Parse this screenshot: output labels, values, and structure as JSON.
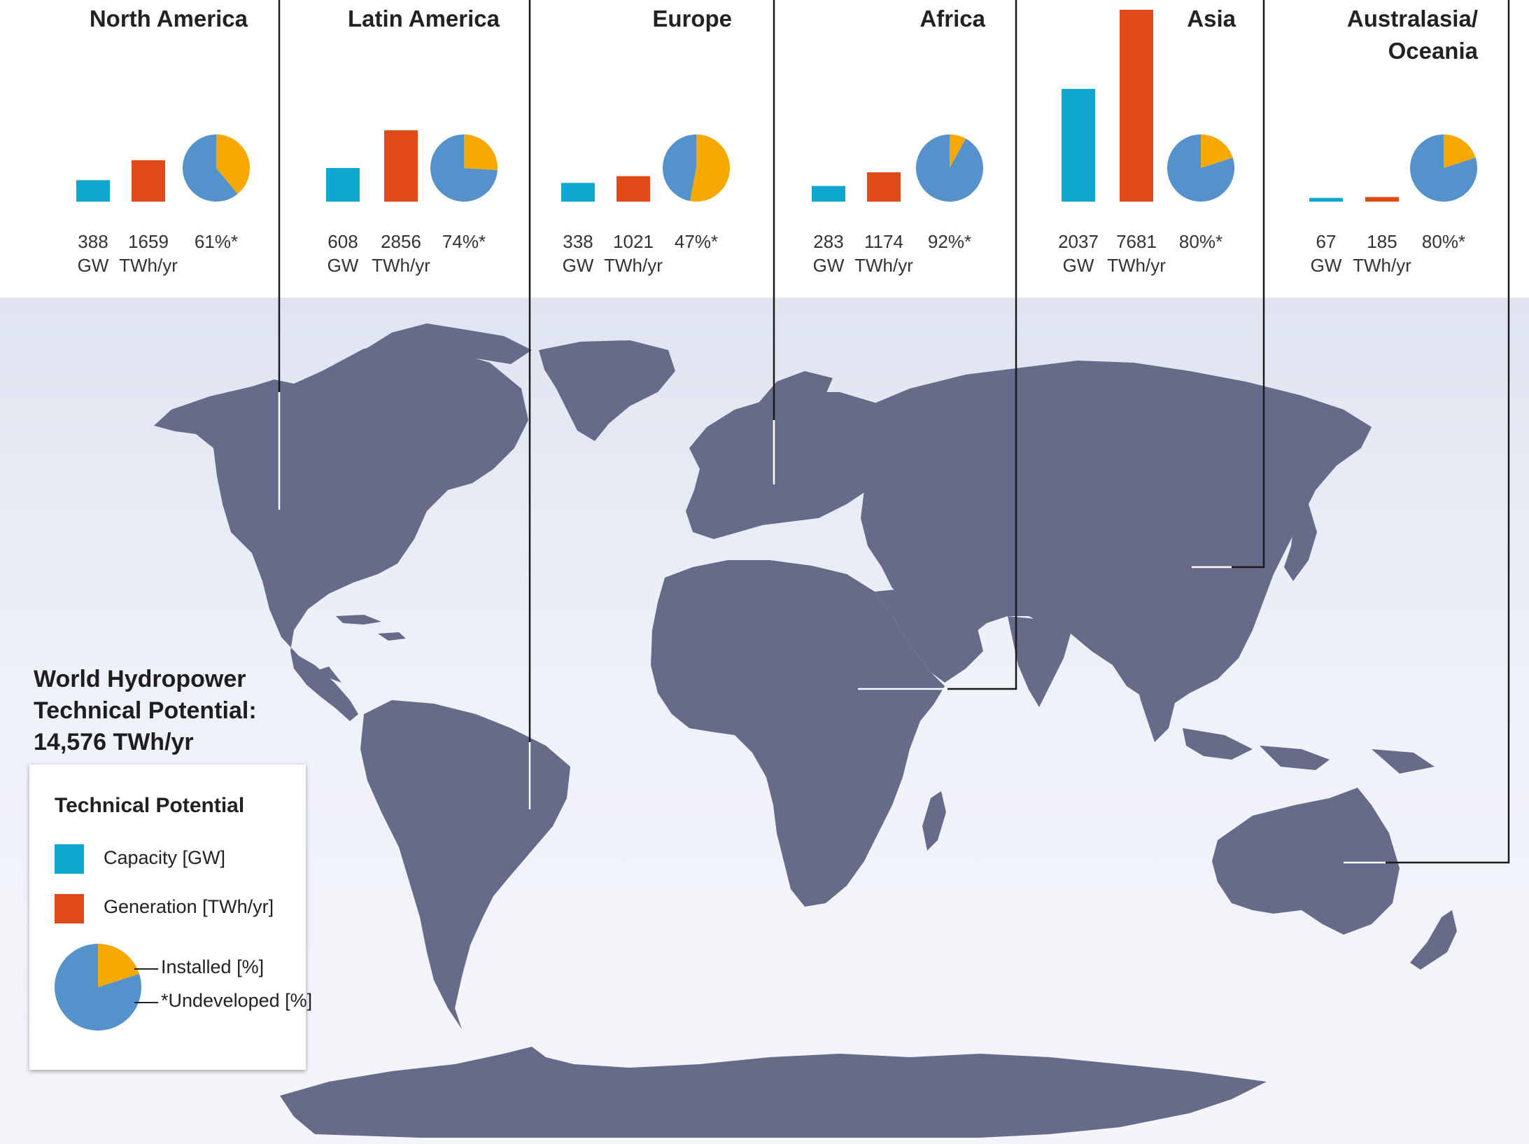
{
  "page": {
    "title_lines": [
      "World Hydropower",
      "Technical Potential:",
      "14,576 TWh/yr"
    ]
  },
  "colors": {
    "capacity": "#0fa6cf",
    "generation": "#e04a17",
    "installed": "#f5a800",
    "undeveloped": "#5591cb",
    "land": "#676b8a",
    "connector_dark": "#1a1a1a",
    "connector_light": "#ffffff"
  },
  "legend": {
    "title": "Technical Potential",
    "capacity_label": "Capacity [GW]",
    "generation_label": "Generation [TWh/yr]",
    "installed_label": "Installed [%]",
    "undeveloped_label": "*Undeveloped [%]",
    "sample_installed_fraction": 0.2
  },
  "chart_data": {
    "type": "bar",
    "title": "World Hydropower Technical Potential: 14,576 TWh/yr",
    "series_definitions": [
      {
        "name": "Capacity [GW]",
        "unit": "GW"
      },
      {
        "name": "Generation [TWh/yr]",
        "unit": "TWh/yr"
      },
      {
        "name": "Undeveloped [%]",
        "unit": "%"
      }
    ],
    "regions": [
      {
        "name": "North America",
        "capacity_gw": 388,
        "generation_twh": 1659,
        "undeveloped_pct": 61,
        "capacity_text": "388",
        "capacity_unit": "GW",
        "generation_text": "1659",
        "generation_unit": "TWh/yr",
        "undeveloped_text": "61%*"
      },
      {
        "name": "Latin America",
        "capacity_gw": 608,
        "generation_twh": 2856,
        "undeveloped_pct": 74,
        "capacity_text": "608",
        "capacity_unit": "GW",
        "generation_text": "2856",
        "generation_unit": "TWh/yr",
        "undeveloped_text": "74%*"
      },
      {
        "name": "Europe",
        "capacity_gw": 338,
        "generation_twh": 1021,
        "undeveloped_pct": 47,
        "capacity_text": "338",
        "capacity_unit": "GW",
        "generation_text": "1021",
        "generation_unit": "TWh/yr",
        "undeveloped_text": "47%*"
      },
      {
        "name": "Africa",
        "capacity_gw": 283,
        "generation_twh": 1174,
        "undeveloped_pct": 92,
        "capacity_text": "283",
        "capacity_unit": "GW",
        "generation_text": "1174",
        "generation_unit": "TWh/yr",
        "undeveloped_text": "92%*"
      },
      {
        "name": "Asia",
        "capacity_gw": 2037,
        "generation_twh": 7681,
        "undeveloped_pct": 80,
        "capacity_text": "2037",
        "capacity_unit": "GW",
        "generation_text": "7681",
        "generation_unit": "TWh/yr",
        "undeveloped_text": "80%*"
      },
      {
        "name": "Australasia/\nOceania",
        "capacity_gw": 67,
        "generation_twh": 185,
        "undeveloped_pct": 80,
        "capacity_text": "67",
        "capacity_unit": "GW",
        "generation_text": "185",
        "generation_unit": "TWh/yr",
        "undeveloped_text": "80%*"
      }
    ]
  }
}
